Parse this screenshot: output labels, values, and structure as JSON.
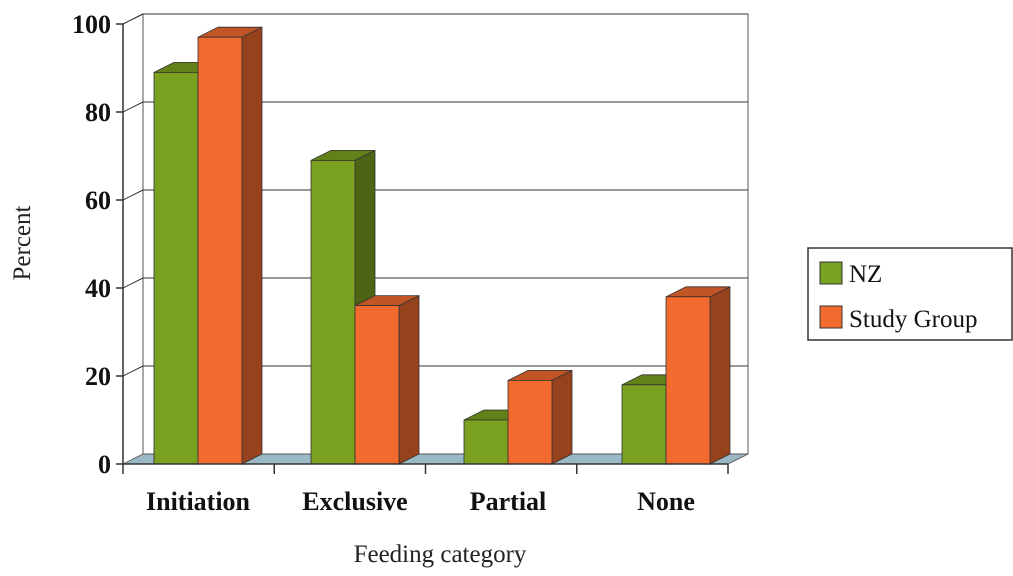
{
  "chart_data": {
    "type": "bar",
    "style": "3d-clustered-column",
    "title": "",
    "xlabel": "Feeding category",
    "ylabel": "Percent",
    "categories": [
      "Initiation",
      "Exclusive",
      "Partial",
      "None"
    ],
    "series": [
      {
        "name": "NZ",
        "values": [
          89,
          69,
          10,
          18
        ],
        "color": "#7aa11f"
      },
      {
        "name": "Study Group",
        "values": [
          97,
          36,
          19,
          38
        ],
        "color": "#f26a2e"
      }
    ],
    "ylim": [
      0,
      100
    ],
    "yticks": [
      0,
      20,
      40,
      60,
      80,
      100
    ],
    "grid": true,
    "legend_position": "right",
    "colors": {
      "gridline": "#333333",
      "floor": "#9ab9c4",
      "wall_border": "#555555"
    }
  }
}
